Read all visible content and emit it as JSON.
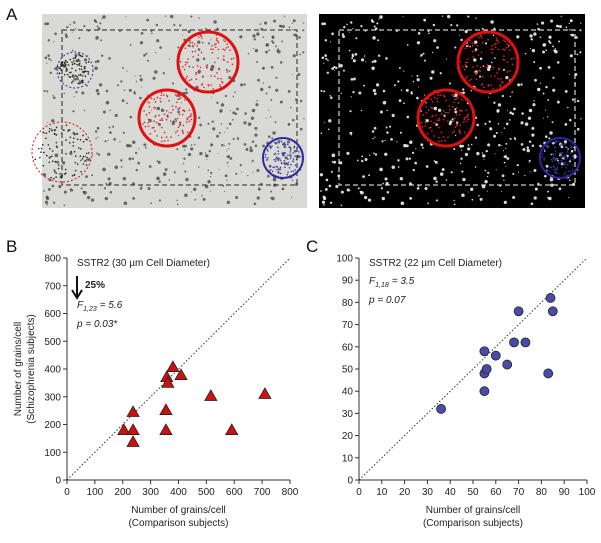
{
  "panel_labels": [
    "A",
    "B",
    "C"
  ],
  "chart_data": [
    {
      "type": "scatter",
      "marker": "triangle",
      "color": "#cc1111",
      "title": "SSTR2 (30 µm Cell Diameter)",
      "change": "25%",
      "stat": {
        "symbol": "F",
        "df": "1,23",
        "value": "= 5.6"
      },
      "p": "p = 0.03*",
      "x_label": [
        "Number of grains/cell",
        "(Comparison subjects)"
      ],
      "y_label": [
        "Number of grains/cell",
        "(Schizophrenia subjects)"
      ],
      "x": [
        204,
        237,
        237,
        237,
        358,
        362,
        355,
        355,
        380,
        409,
        516,
        591,
        710
      ],
      "values": [
        180,
        245,
        180,
        137,
        371,
        350,
        252,
        180,
        407,
        378,
        303,
        180,
        310
      ],
      "xlim": [
        0,
        800
      ],
      "ylim": [
        0,
        800
      ],
      "xticks": [
        0,
        100,
        200,
        300,
        400,
        500,
        600,
        700,
        800
      ],
      "yticks": [
        0,
        100,
        200,
        300,
        400,
        500,
        600,
        700,
        800
      ],
      "identity_line": true
    },
    {
      "type": "scatter",
      "marker": "circle",
      "color": "#4a4aa8",
      "title": "SSTR2 (22 µm Cell Diameter)",
      "stat": {
        "symbol": "F",
        "df": "1,18",
        "value": "= 3.5"
      },
      "p": "p = 0.07",
      "x_label": [
        "Number of grains/cell",
        "(Comparison subjects)"
      ],
      "x": [
        36,
        55,
        55,
        56,
        55,
        60,
        65,
        68,
        70,
        73,
        83,
        84,
        85
      ],
      "values": [
        32,
        40,
        48,
        50,
        58,
        56,
        52,
        62,
        76,
        62,
        48,
        82,
        76
      ],
      "xlim": [
        0,
        100
      ],
      "ylim": [
        0,
        100
      ],
      "xticks": [
        0,
        10,
        20,
        30,
        40,
        50,
        60,
        70,
        80,
        90,
        100
      ],
      "yticks": [
        0,
        10,
        20,
        30,
        40,
        50,
        60,
        70,
        80,
        90,
        100
      ],
      "identity_line": true
    }
  ]
}
